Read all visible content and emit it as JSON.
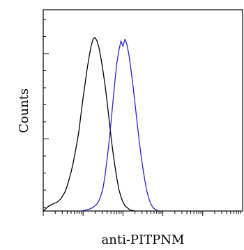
{
  "chart_data": {
    "type": "line",
    "title": "",
    "xlabel": "anti-PITPNM",
    "ylabel": "Counts",
    "x_scale": "log",
    "xlim": [
      0,
      100
    ],
    "ylim": [
      0,
      100
    ],
    "grid": false,
    "legend": "none",
    "series": [
      {
        "color": "#000000",
        "x": [
          0,
          3,
          5,
          7,
          9,
          10,
          11,
          12,
          13,
          14,
          15,
          16,
          17,
          18,
          19,
          20,
          21,
          22,
          23,
          24,
          25,
          26,
          27,
          28,
          29,
          30,
          31,
          32,
          33,
          34,
          35,
          36,
          37,
          38,
          39,
          40,
          41,
          42,
          43,
          44,
          45,
          46
        ],
        "y": [
          0,
          3,
          4,
          5,
          7,
          9,
          11,
          14,
          18,
          22,
          27,
          33,
          39,
          46,
          55,
          64,
          72,
          80,
          87,
          93,
          97,
          98,
          96,
          92,
          86,
          79,
          71,
          62,
          52,
          42,
          33,
          25,
          18,
          12,
          8,
          5,
          3,
          2,
          1,
          0.5,
          0.2,
          0
        ]
      },
      {
        "color": "#2626c6",
        "x": [
          19,
          21,
          23,
          25,
          27,
          28,
          29,
          30,
          31,
          32,
          33,
          34,
          35,
          36,
          37,
          38,
          39,
          40,
          41,
          42,
          43,
          44,
          45,
          46,
          47,
          48,
          49,
          50,
          51,
          52,
          53,
          54,
          55,
          56,
          57,
          58
        ],
        "y": [
          0,
          0.5,
          1,
          2,
          4,
          6,
          9,
          13,
          20,
          29,
          39,
          50,
          62,
          74,
          84,
          91,
          96,
          93,
          97,
          94,
          88,
          80,
          71,
          61,
          51,
          41,
          32,
          24,
          17,
          11,
          7,
          4,
          2,
          1,
          0.5,
          0
        ]
      }
    ]
  }
}
